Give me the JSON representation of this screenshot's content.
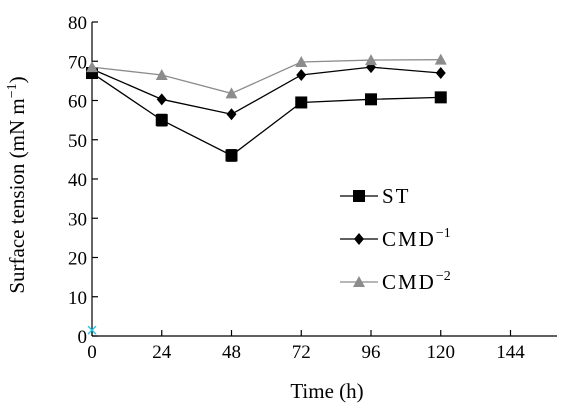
{
  "chart_data": {
    "type": "line",
    "xlabel": "Time (h)",
    "ylabel": "Surface tension (mN m",
    "ylabel_sup": "−1",
    "ylabel_close": ")",
    "xlim": [
      0,
      160
    ],
    "ylim": [
      0,
      80
    ],
    "x_ticks": [
      0,
      24,
      48,
      72,
      96,
      120,
      144
    ],
    "y_ticks": [
      0,
      10,
      20,
      30,
      40,
      50,
      60,
      70,
      80
    ],
    "x": [
      0,
      24,
      48,
      72,
      96,
      120
    ],
    "grid": false,
    "legend_position": "center-right",
    "series": [
      {
        "name": "ST",
        "name_sup": "",
        "marker": "square",
        "color": "#000000",
        "values": [
          67.0,
          55.0,
          46.0,
          59.5,
          60.3,
          60.8
        ],
        "errors": [
          1.2,
          1.5,
          1.5,
          1.0,
          1.0,
          1.2
        ]
      },
      {
        "name": "CMD",
        "name_sup": "−1",
        "marker": "diamond",
        "color": "#000000",
        "values": [
          68.0,
          60.3,
          56.5,
          66.5,
          68.5,
          67.0
        ],
        "errors": [
          0,
          0,
          0,
          0,
          0,
          0
        ]
      },
      {
        "name": "CMD",
        "name_sup": "−2",
        "marker": "triangle",
        "color": "#8c8c8c",
        "values": [
          68.5,
          66.5,
          61.8,
          69.8,
          70.3,
          70.4
        ],
        "errors": [
          0,
          0,
          0,
          0,
          0,
          0
        ]
      }
    ],
    "origin_marker_color": "#29c5e6"
  }
}
